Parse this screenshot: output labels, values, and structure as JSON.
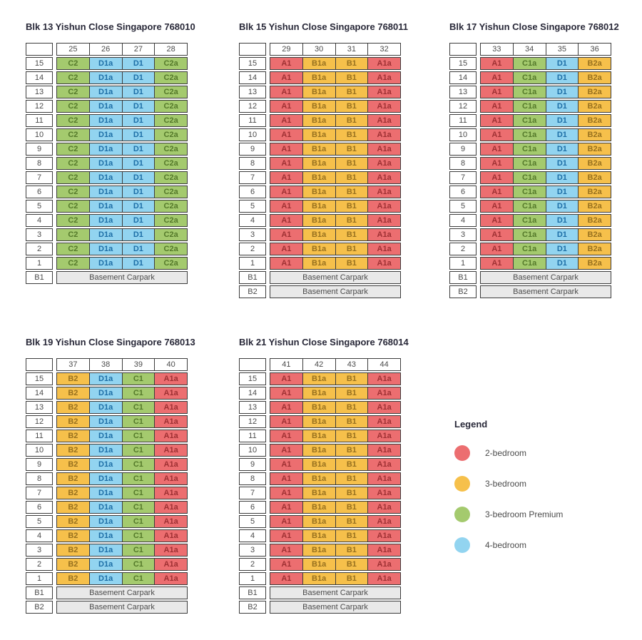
{
  "unit_colors": {
    "two": {
      "bg": "#ec6e70",
      "text": "#9e3033"
    },
    "three": {
      "bg": "#f6c04b",
      "text": "#97701e"
    },
    "premium": {
      "bg": "#a4ca6e",
      "text": "#54792a"
    },
    "four": {
      "bg": "#92d4f0",
      "text": "#1d6ea6"
    }
  },
  "border_color": "#3c3c3c",
  "basement_bg": "#e9e9e9",
  "floors": [
    "15",
    "14",
    "13",
    "12",
    "11",
    "10",
    "9",
    "8",
    "7",
    "6",
    "5",
    "4",
    "3",
    "2",
    "1"
  ],
  "basement_text": "Basement Carpark",
  "blocks": [
    {
      "title": "Blk 13 Yishun Close Singapore 768010",
      "stacks": [
        "25",
        "26",
        "27",
        "28"
      ],
      "units": [
        {
          "label": "C2",
          "type": "premium"
        },
        {
          "label": "D1a",
          "type": "four"
        },
        {
          "label": "D1",
          "type": "four"
        },
        {
          "label": "C2a",
          "type": "premium"
        }
      ],
      "basements": [
        "B1"
      ]
    },
    {
      "title": "Blk 15 Yishun Close Singapore 768011",
      "stacks": [
        "29",
        "30",
        "31",
        "32"
      ],
      "units": [
        {
          "label": "A1",
          "type": "two"
        },
        {
          "label": "B1a",
          "type": "three"
        },
        {
          "label": "B1",
          "type": "three"
        },
        {
          "label": "A1a",
          "type": "two"
        }
      ],
      "basements": [
        "B1",
        "B2"
      ]
    },
    {
      "title": "Blk 17 Yishun Close Singapore 768012",
      "stacks": [
        "33",
        "34",
        "35",
        "36"
      ],
      "units": [
        {
          "label": "A1",
          "type": "two"
        },
        {
          "label": "C1a",
          "type": "premium"
        },
        {
          "label": "D1",
          "type": "four"
        },
        {
          "label": "B2a",
          "type": "three"
        }
      ],
      "basements": [
        "B1",
        "B2"
      ]
    },
    {
      "title": "Blk 19 Yishun Close Singapore 768013",
      "stacks": [
        "37",
        "38",
        "39",
        "40"
      ],
      "units": [
        {
          "label": "B2",
          "type": "three"
        },
        {
          "label": "D1a",
          "type": "four"
        },
        {
          "label": "C1",
          "type": "premium"
        },
        {
          "label": "A1a",
          "type": "two"
        }
      ],
      "basements": [
        "B1",
        "B2"
      ]
    },
    {
      "title": "Blk 21 Yishun Close Singapore 768014",
      "stacks": [
        "41",
        "42",
        "43",
        "44"
      ],
      "units": [
        {
          "label": "A1",
          "type": "two"
        },
        {
          "label": "B1a",
          "type": "three"
        },
        {
          "label": "B1",
          "type": "three"
        },
        {
          "label": "A1a",
          "type": "two"
        }
      ],
      "basements": [
        "B1",
        "B2"
      ]
    }
  ],
  "legend": {
    "title": "Legend",
    "items": [
      {
        "label": "2-bedroom",
        "type": "two"
      },
      {
        "label": "3-bedroom",
        "type": "three"
      },
      {
        "label": "3-bedroom Premium",
        "type": "premium"
      },
      {
        "label": "4-bedroom",
        "type": "four"
      }
    ]
  }
}
